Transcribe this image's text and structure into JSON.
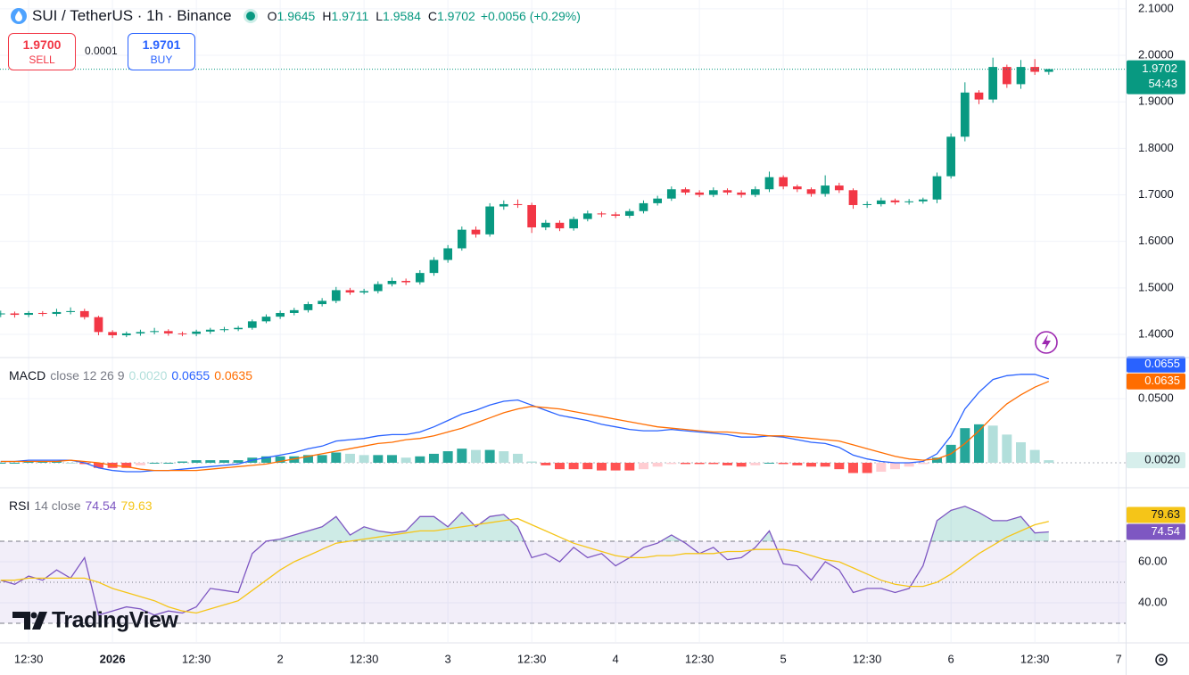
{
  "header": {
    "symbol": "SUI / TetherUS · 1h · Binance",
    "o": "O",
    "h": "H",
    "l": "L",
    "c": "C",
    "change": "+0.0056 (+0.29%)"
  },
  "trade": {
    "sell_price": "1.9700",
    "sell": "SELL",
    "spread": "0.0001",
    "buy_price": "1.9701",
    "buy": "BUY"
  },
  "watermark": "TradingView",
  "chart_data": [
    {
      "type": "candlestick",
      "countdown": "54:43",
      "colors": {
        "up": "#089981",
        "down": "#f23645"
      },
      "xlim": [
        -16.1,
        145
      ],
      "xticks": [
        {
          "value": -12,
          "label": "12:30"
        },
        {
          "value": 0,
          "label": "2026",
          "bold": true
        },
        {
          "value": 12,
          "label": "12:30"
        },
        {
          "value": 24,
          "label": "2"
        },
        {
          "value": 36,
          "label": "12:30"
        },
        {
          "value": 48,
          "label": "3"
        },
        {
          "value": 60,
          "label": "12:30"
        },
        {
          "value": 72,
          "label": "4"
        },
        {
          "value": 84,
          "label": "12:30"
        },
        {
          "value": 96,
          "label": "5"
        },
        {
          "value": 108,
          "label": "12:30"
        },
        {
          "value": 120,
          "label": "6"
        },
        {
          "value": 132,
          "label": "12:30"
        },
        {
          "value": 144,
          "label": "7"
        }
      ],
      "ylim": [
        1.352,
        2.119
      ],
      "yticks": [
        {
          "value": 1.4,
          "label": "1.4000"
        },
        {
          "value": 1.5,
          "label": "1.5000"
        },
        {
          "value": 1.6,
          "label": "1.6000"
        },
        {
          "value": 1.7,
          "label": "1.7000"
        },
        {
          "value": 1.8,
          "label": "1.8000"
        },
        {
          "value": 1.9,
          "label": "1.9000"
        },
        {
          "value": 2.0,
          "label": "2.0000"
        },
        {
          "value": 2.1,
          "label": "2.1000"
        }
      ],
      "x": [
        -16,
        -14,
        -12,
        -10,
        -8,
        -6,
        -4,
        -2,
        0,
        2,
        4,
        6,
        8,
        10,
        12,
        14,
        16,
        18,
        20,
        22,
        24,
        26,
        28,
        30,
        32,
        34,
        36,
        38,
        40,
        42,
        44,
        46,
        48,
        50,
        52,
        54,
        56,
        58,
        60,
        62,
        64,
        66,
        68,
        70,
        72,
        74,
        76,
        78,
        80,
        82,
        84,
        86,
        88,
        90,
        92,
        94,
        96,
        98,
        100,
        102,
        104,
        106,
        108,
        110,
        112,
        114,
        116,
        118,
        120,
        122,
        124,
        126,
        128,
        130,
        132,
        134
      ],
      "open": [
        1.443,
        1.445,
        1.442,
        1.446,
        1.444,
        1.448,
        1.45,
        1.437,
        1.405,
        1.398,
        1.402,
        1.405,
        1.407,
        1.402,
        1.401,
        1.406,
        1.41,
        1.411,
        1.414,
        1.428,
        1.438,
        1.446,
        1.452,
        1.465,
        1.472,
        1.495,
        1.49,
        1.493,
        1.508,
        1.515,
        1.512,
        1.532,
        1.56,
        1.585,
        1.625,
        1.615,
        1.675,
        1.68,
        1.678,
        1.63,
        1.64,
        1.628,
        1.648,
        1.66,
        1.658,
        1.655,
        1.665,
        1.682,
        1.692,
        1.712,
        1.705,
        1.7,
        1.71,
        1.705,
        1.7,
        1.712,
        1.738,
        1.718,
        1.712,
        1.702,
        1.72,
        1.71,
        1.678,
        1.68,
        1.688,
        1.684,
        1.686,
        1.69,
        1.74,
        1.825,
        1.92,
        1.905,
        1.975,
        1.938,
        1.975,
        1.9645
      ],
      "high": [
        1.451,
        1.449,
        1.45,
        1.45,
        1.455,
        1.458,
        1.455,
        1.44,
        1.409,
        1.406,
        1.41,
        1.414,
        1.411,
        1.406,
        1.41,
        1.414,
        1.416,
        1.418,
        1.432,
        1.443,
        1.451,
        1.457,
        1.47,
        1.478,
        1.502,
        1.5,
        1.498,
        1.514,
        1.522,
        1.52,
        1.538,
        1.566,
        1.592,
        1.632,
        1.632,
        1.682,
        1.688,
        1.69,
        1.683,
        1.646,
        1.645,
        1.653,
        1.666,
        1.664,
        1.663,
        1.67,
        1.688,
        1.698,
        1.718,
        1.716,
        1.71,
        1.716,
        1.714,
        1.71,
        1.718,
        1.75,
        1.742,
        1.722,
        1.716,
        1.742,
        1.726,
        1.714,
        1.686,
        1.694,
        1.692,
        1.691,
        1.694,
        1.748,
        1.832,
        1.942,
        1.925,
        1.995,
        1.98,
        1.99,
        1.992,
        1.9711
      ],
      "low": [
        1.437,
        1.436,
        1.437,
        1.439,
        1.439,
        1.443,
        1.432,
        1.398,
        1.392,
        1.394,
        1.397,
        1.4,
        1.397,
        1.396,
        1.396,
        1.401,
        1.405,
        1.407,
        1.41,
        1.424,
        1.433,
        1.441,
        1.447,
        1.46,
        1.467,
        1.485,
        1.486,
        1.488,
        1.503,
        1.506,
        1.507,
        1.526,
        1.554,
        1.58,
        1.608,
        1.61,
        1.668,
        1.672,
        1.618,
        1.624,
        1.622,
        1.623,
        1.643,
        1.652,
        1.65,
        1.65,
        1.66,
        1.677,
        1.687,
        1.7,
        1.695,
        1.695,
        1.7,
        1.694,
        1.695,
        1.706,
        1.712,
        1.706,
        1.696,
        1.696,
        1.704,
        1.67,
        1.672,
        1.675,
        1.679,
        1.679,
        1.681,
        1.682,
        1.735,
        1.815,
        1.895,
        1.898,
        1.93,
        1.928,
        1.958,
        1.9584
      ],
      "close": [
        1.445,
        1.442,
        1.446,
        1.444,
        1.448,
        1.45,
        1.437,
        1.405,
        1.398,
        1.402,
        1.405,
        1.407,
        1.402,
        1.401,
        1.406,
        1.41,
        1.411,
        1.414,
        1.428,
        1.438,
        1.446,
        1.452,
        1.465,
        1.472,
        1.495,
        1.49,
        1.493,
        1.508,
        1.515,
        1.512,
        1.532,
        1.56,
        1.585,
        1.625,
        1.615,
        1.675,
        1.68,
        1.678,
        1.63,
        1.64,
        1.628,
        1.648,
        1.66,
        1.658,
        1.655,
        1.665,
        1.682,
        1.692,
        1.712,
        1.705,
        1.7,
        1.71,
        1.705,
        1.7,
        1.712,
        1.738,
        1.718,
        1.712,
        1.702,
        1.72,
        1.71,
        1.678,
        1.68,
        1.688,
        1.684,
        1.686,
        1.69,
        1.74,
        1.825,
        1.92,
        1.905,
        1.975,
        1.938,
        1.975,
        1.9646,
        1.9702
      ]
    },
    {
      "type": "macd",
      "title": "MACD",
      "params": "close 12 26 9",
      "ylim": [
        -0.0188,
        0.0814
      ],
      "yticks": [
        {
          "value": 0.05,
          "label": "0.0500"
        }
      ],
      "x": [
        -16,
        -14,
        -12,
        -10,
        -8,
        -6,
        -4,
        -2,
        0,
        2,
        4,
        6,
        8,
        10,
        12,
        14,
        16,
        18,
        20,
        22,
        24,
        26,
        28,
        30,
        32,
        34,
        36,
        38,
        40,
        42,
        44,
        46,
        48,
        50,
        52,
        54,
        56,
        58,
        60,
        62,
        64,
        66,
        68,
        70,
        72,
        74,
        76,
        78,
        80,
        82,
        84,
        86,
        88,
        90,
        92,
        94,
        96,
        98,
        100,
        102,
        104,
        106,
        108,
        110,
        112,
        114,
        116,
        118,
        120,
        122,
        124,
        126,
        128,
        130,
        132,
        134
      ],
      "histogram": {
        "last_label": "0.0020",
        "label_color": "#b2dfdb",
        "colors": {
          "up_rising": "#26a69a",
          "up_falling": "#b2dfdb",
          "down_falling": "#ff5252",
          "down_rising": "#ffcdd2"
        },
        "values": [
          0,
          0,
          0.001,
          0.001,
          0.001,
          0,
          -0.001,
          -0.004,
          -0.004,
          -0.004,
          -0.002,
          0,
          0,
          0.001,
          0.002,
          0.002,
          0.002,
          0.002,
          0.004,
          0.005,
          0.005,
          0.005,
          0.006,
          0.006,
          0.008,
          0.007,
          0.006,
          0.006,
          0.006,
          0.004,
          0.005,
          0.007,
          0.009,
          0.011,
          0.01,
          0.01,
          0.009,
          0.007,
          0.001,
          -0.002,
          -0.005,
          -0.005,
          -0.005,
          -0.006,
          -0.006,
          -0.006,
          -0.005,
          -0.003,
          -0.001,
          -0.001,
          -0.001,
          -0.001,
          -0.002,
          -0.003,
          -0.002,
          0,
          -0.001,
          -0.002,
          -0.003,
          -0.003,
          -0.005,
          -0.008,
          -0.008,
          -0.007,
          -0.005,
          -0.003,
          -0.001,
          0.004,
          0.014,
          0.027,
          0.03,
          0.029,
          0.022,
          0.016,
          0.01,
          0.002
        ]
      },
      "series": [
        {
          "color": "#2962ff",
          "last_label": "0.0655",
          "values": [
            0.001,
            0.001,
            0.002,
            0.002,
            0.002,
            0.002,
            0,
            -0.004,
            -0.006,
            -0.007,
            -0.007,
            -0.006,
            -0.006,
            -0.005,
            -0.004,
            -0.003,
            -0.002,
            -0.001,
            0.002,
            0.004,
            0.006,
            0.008,
            0.011,
            0.013,
            0.017,
            0.018,
            0.019,
            0.021,
            0.022,
            0.022,
            0.024,
            0.028,
            0.033,
            0.038,
            0.041,
            0.045,
            0.048,
            0.049,
            0.045,
            0.041,
            0.037,
            0.035,
            0.033,
            0.03,
            0.028,
            0.026,
            0.025,
            0.025,
            0.026,
            0.025,
            0.024,
            0.023,
            0.022,
            0.02,
            0.02,
            0.021,
            0.02,
            0.018,
            0.016,
            0.015,
            0.012,
            0.006,
            0.003,
            0.001,
            0,
            0,
            0.001,
            0.007,
            0.021,
            0.042,
            0.055,
            0.065,
            0.068,
            0.069,
            0.069,
            0.0655
          ]
        },
        {
          "color": "#ff6d00",
          "last_label": "0.0635",
          "values": [
            0.001,
            0.001,
            0.001,
            0.001,
            0.001,
            0.002,
            0.001,
            0,
            -0.002,
            -0.003,
            -0.005,
            -0.006,
            -0.006,
            -0.006,
            -0.006,
            -0.005,
            -0.004,
            -0.003,
            -0.002,
            -0.001,
            0.001,
            0.003,
            0.005,
            0.007,
            0.009,
            0.011,
            0.013,
            0.015,
            0.016,
            0.018,
            0.019,
            0.021,
            0.024,
            0.027,
            0.031,
            0.035,
            0.039,
            0.042,
            0.044,
            0.043,
            0.042,
            0.04,
            0.038,
            0.036,
            0.034,
            0.032,
            0.03,
            0.028,
            0.027,
            0.026,
            0.025,
            0.024,
            0.024,
            0.023,
            0.022,
            0.021,
            0.021,
            0.02,
            0.019,
            0.018,
            0.017,
            0.014,
            0.011,
            0.008,
            0.005,
            0.003,
            0.002,
            0.003,
            0.007,
            0.015,
            0.025,
            0.036,
            0.046,
            0.053,
            0.059,
            0.0635
          ]
        }
      ]
    },
    {
      "type": "rsi",
      "title": "RSI",
      "params": "14 close",
      "ylim": [
        20.9,
        95.6
      ],
      "yticks": [
        {
          "value": 40,
          "label": "40.00"
        },
        {
          "value": 60,
          "label": "60.00"
        }
      ],
      "levels": [
        30,
        50,
        70
      ],
      "band_color": "#7e57c2",
      "x": [
        -16,
        -14,
        -12,
        -10,
        -8,
        -6,
        -4,
        -2,
        0,
        2,
        4,
        6,
        8,
        10,
        12,
        14,
        16,
        18,
        20,
        22,
        24,
        26,
        28,
        30,
        32,
        34,
        36,
        38,
        40,
        42,
        44,
        46,
        48,
        50,
        52,
        54,
        56,
        58,
        60,
        62,
        64,
        66,
        68,
        70,
        72,
        74,
        76,
        78,
        80,
        82,
        84,
        86,
        88,
        90,
        92,
        94,
        96,
        98,
        100,
        102,
        104,
        106,
        108,
        110,
        112,
        114,
        116,
        118,
        120,
        122,
        124,
        126,
        128,
        130,
        132,
        134
      ],
      "series": [
        {
          "color": "#7e57c2",
          "values": [
            51,
            49,
            53,
            51,
            56,
            52,
            62,
            34,
            36,
            38,
            37,
            34,
            36,
            35,
            38,
            47,
            46,
            45,
            64,
            70,
            71,
            73,
            75,
            77,
            82,
            73,
            77,
            75,
            74,
            75,
            82,
            82,
            77,
            84,
            77,
            82,
            83,
            77,
            62,
            64,
            60,
            67,
            62,
            64,
            58,
            62,
            67,
            69,
            73,
            69,
            64,
            67,
            61,
            62,
            67,
            75,
            59,
            58,
            51,
            60,
            56,
            45,
            47,
            47,
            45,
            47,
            58,
            80,
            85,
            87,
            84,
            80,
            80,
            82,
            74,
            74.54
          ]
        },
        {
          "color": "#f5c518",
          "values": [
            51,
            51,
            52,
            52,
            52,
            52,
            52,
            50,
            47,
            45,
            43,
            41,
            38,
            36,
            35,
            37,
            39,
            41,
            46,
            51,
            56,
            60,
            63,
            66,
            69,
            70,
            71,
            72,
            73,
            74,
            75,
            75,
            76,
            77,
            78,
            79,
            80,
            81,
            78,
            75,
            72,
            69,
            67,
            65,
            63,
            62,
            62,
            63,
            63,
            64,
            64,
            64,
            65,
            65,
            66,
            66,
            66,
            65,
            63,
            61,
            60,
            57,
            54,
            51,
            49,
            48,
            48,
            50,
            54,
            59,
            64,
            68,
            72,
            75,
            78,
            79.63
          ]
        }
      ]
    }
  ]
}
